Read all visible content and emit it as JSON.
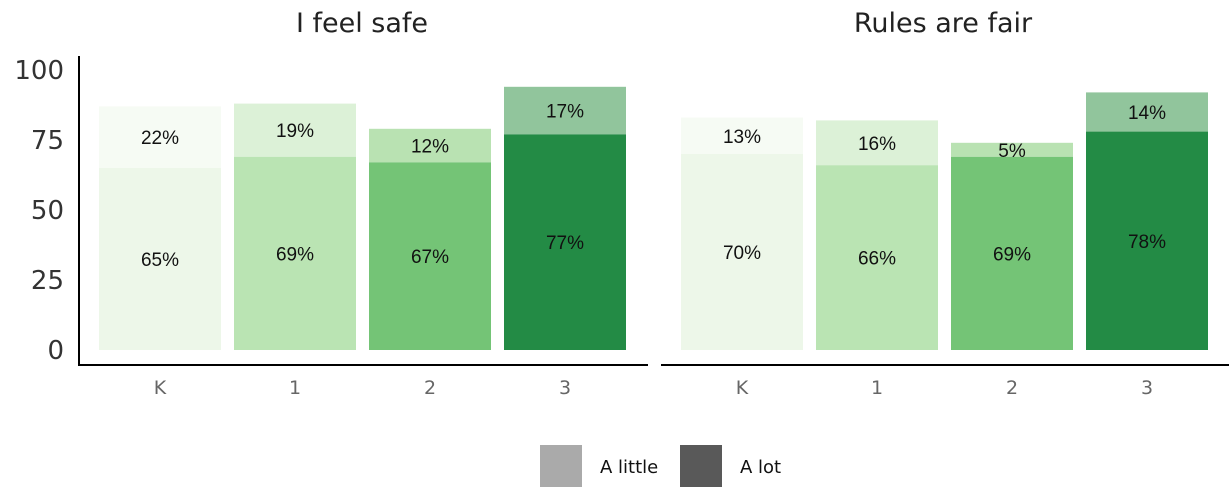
{
  "chart_data": [
    {
      "type": "bar",
      "stacked": true,
      "title": "I feel safe",
      "categories": [
        "K",
        "1",
        "2",
        "3"
      ],
      "ylim": [
        0,
        100
      ],
      "yticks": [
        0,
        25,
        50,
        75,
        100
      ],
      "series": [
        {
          "name": "A lot",
          "values": [
            65,
            69,
            67,
            77
          ],
          "labels": [
            "65%",
            "69%",
            "67%",
            "77%"
          ]
        },
        {
          "name": "A little",
          "values": [
            22,
            19,
            12,
            17
          ],
          "labels": [
            "22%",
            "19%",
            "12%",
            "17%"
          ]
        }
      ]
    },
    {
      "type": "bar",
      "stacked": true,
      "title": "Rules are fair",
      "categories": [
        "K",
        "1",
        "2",
        "3"
      ],
      "ylim": [
        0,
        100
      ],
      "yticks": [
        0,
        25,
        50,
        75,
        100
      ],
      "series": [
        {
          "name": "A lot",
          "values": [
            70,
            66,
            69,
            78
          ],
          "labels": [
            "70%",
            "66%",
            "69%",
            "78%"
          ]
        },
        {
          "name": "A little",
          "values": [
            13,
            16,
            5,
            14
          ],
          "labels": [
            "13%",
            "16%",
            "5%",
            "14%"
          ]
        }
      ]
    }
  ],
  "colors": {
    "a_lot": [
      "#edf7e9",
      "#bae4b3",
      "#74c476",
      "#238b45"
    ],
    "a_little": [
      "#f6fbf4",
      "#dcf1d7",
      "#b9e2b2",
      "#91c59c"
    ],
    "legend_a_little": "#aaaaaa",
    "legend_a_lot": "#595959"
  },
  "legend": {
    "placement": "bottom-center",
    "items": [
      {
        "label": "A little",
        "color": "#aaaaaa"
      },
      {
        "label": "A lot",
        "color": "#595959"
      }
    ]
  }
}
